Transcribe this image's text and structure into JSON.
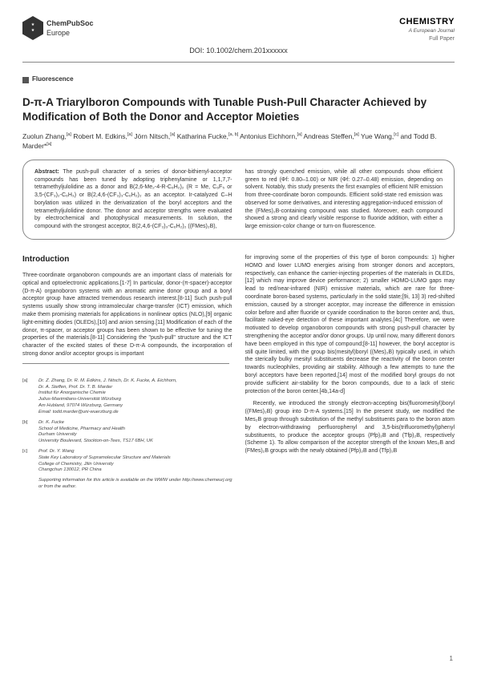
{
  "header": {
    "publisher_top": "ChemPubSoc",
    "publisher_bottom": "Europe",
    "journal": "CHEMISTRY",
    "journal_sub": "A European Journal",
    "paper_type": "Full Paper",
    "doi": "DOI: 10.1002/chem.201xxxxxx"
  },
  "section_tag": "Fluorescence",
  "title": "D-π-A Triarylboron Compounds with Tunable Push-Pull Character Achieved by Modification of Both the Donor and Acceptor Moieties",
  "authors_html": "Zuolun Zhang,<sup>[a]</sup> Robert M. Edkins,<sup>[a]</sup> Jörn Nitsch,<sup>[a]</sup> Katharina Fucke,<sup>[a, b]</sup> Antonius Eichhorn,<sup>[a]</sup> Andreas Steffen,<sup>[a]</sup> Yue Wang,<sup>[c]</sup> and Todd B. Marder*<sup>[a]</sup>",
  "abstract": {
    "col1": "The push-pull character of a series of donor-bithienyl-acceptor compounds has been tuned by adopting triphenylamine or 1,1,7,7-tetramethyljulolidine as a donor and B(2,6-Me₂-4-R-C₆H₂)₂ (R = Me, C₆F₅ or 3,5-(CF₃)₂-C₆H₃) or B(2,4,6-(CF₃)₃-C₆H₂)₂ as an acceptor. Ir-catalyzed C–H borylation was utilized in the derivatization of the boryl acceptors and the tetramethyljulolidine donor. The donor and acceptor strengths were evaluated by electrochemical and photophysical measurements. In solution, the compound with the strongest acceptor, B(2,4,6-(CF₃)₃-C₆H₂)₂ ((FMes)₂B),",
    "col2": "has strongly quenched emission, while all other compounds show efficient green to red (Φf: 0.80–1.00) or NIR (Φf: 0.27–0.48) emission, depending on solvent. Notably, this study presents the first examples of efficient NIR emission from three-coordinate boron compounds. Efficient solid-state red emission was observed for some derivatives, and interesting aggregation-induced emission of the (FMes)₂B-containing compound was studied. Moreover, each compound showed a strong and clearly visible response to fluoride addition, with either a large emission-color change or turn-on fluorescence."
  },
  "intro_heading": "Introduction",
  "intro_col1_p1": "Three-coordinate organoboron compounds are an important class of materials for optical and optoelectronic applications.[1-7] In particular, donor-(π-spacer)-acceptor (D-π-A) organoboron systems with an aromatic amine donor group and a boryl acceptor group have attracted tremendous research interest.[8-11] Such push-pull systems usually show strong intramolecular charge-transfer (ICT) emission, which make them promising materials for applications in nonlinear optics (NLO),[9] organic light-emitting diodes (OLEDs),[10] and anion sensing.[11] Modification of each of the donor, π-spacer, or acceptor groups has been shown to be effective for tuning the properties of the materials.[8-11] Considering the \"push-pull\" structure and the ICT character of the excited states of these D-π-A compounds, the incorporation of strong donor and/or acceptor groups is important",
  "intro_col2_p1": "for improving some of the properties of this type of boron compounds: 1) higher HOMO and lower LUMO energies arising from stronger donors and acceptors, respectively, can enhance the carrier-injecting properties of the materials in OLEDs,[12] which may improve device performance; 2) smaller HOMO-LUMO gaps may lead to red/near-infrared (NIR) emissive materials, which are rare for three-coordinate boron-based systems, particularly in the solid state;[9i, 13] 3) red-shifted emission, caused by a stronger acceptor, may increase the difference in emission color before and after fluoride or cyanide coordination to the boron center and, thus, facilitate naked-eye detection of these important analytes.[4c] Therefore, we were motivated to develop organoboron compounds with strong push-pull character by strengthening the acceptor and/or donor groups. Up until now, many different donors have been employed in this type of compound;[8-11] however, the boryl acceptor is still quite limited, with the group bis(mesityl)boryl ((Mes)₂B) typically used, in which the sterically bulky mesityl substituents decrease the reactivity of the boron center towards nucleophiles, providing air stability. Although a few attempts to tune the boryl acceptors have been reported,[14] most of the modified boryl groups do not provide sufficient air-stability for the boron compounds, due to a lack of steric protection of the boron center.[4b,14a-d]",
  "intro_col2_p2": "Recently, we introduced the strongly electron-accepting bis(fluoromesityl)boryl ((FMes)₂B) group into D-π-A systems.[15] In the present study, we modified the Mes₂B group through substitution of the methyl substituents para to the boron atom by electron-withdrawing perfluorophenyl and 3,5-bis(trifluoromethyl)phenyl substituents, to produce the acceptor groups (Pfp)₂B and (Tfp)₂B, respectively (Scheme 1). To allow comparison of the acceptor strength of the known Mes₂B and (FMes)₂B groups with the newly obtained (Pfp)₂B and (Tfp)₂B",
  "affiliations": [
    {
      "tag": "[a]",
      "lines": [
        "Dr. Z. Zhang, Dr. R. M. Edkins, J. Nitsch, Dr. K. Fucke, A. Eichhorn,",
        "Dr. A. Steffen, Prof. Dr. T. B. Marder",
        "Institut für Anorganische Chemie",
        "Julius-Maximilians-Universität Würzburg",
        "Am Hubland, 97074 Würzburg, Germany",
        "Email: todd.marder@uni-wuerzburg.de"
      ]
    },
    {
      "tag": "[b]",
      "lines": [
        "Dr. K. Fucke",
        "School of Medicine, Pharmacy and Health",
        "Durham University",
        "University Boulevard, Stockton-on-Tees, TS17 6BH, UK"
      ]
    },
    {
      "tag": "[c]",
      "lines": [
        "Prof. Dr. Y. Wang",
        "State Key Laboratory of Supramolecular Structure and Materials",
        "College of Chemistry, Jilin University",
        "Changchun 130012, PR China"
      ]
    }
  ],
  "supporting": "Supporting information for this article is available on the WWW under http://www.chemeurj.org or from the author.",
  "page_number": "1"
}
